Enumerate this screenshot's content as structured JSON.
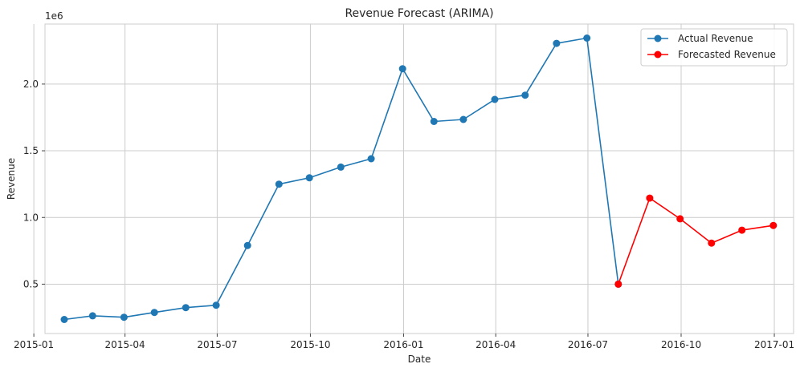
{
  "chart_data": {
    "type": "line",
    "title": "Revenue Forecast (ARIMA)",
    "xlabel": "Date",
    "ylabel": "Revenue",
    "y_offset_label": "1e6",
    "ylim": [
      0.13,
      2.45
    ],
    "xlim": [
      "2015-01-12",
      "2017-01-20"
    ],
    "grid": true,
    "legend_position": "top-right",
    "x_ticks": [
      "2015-01",
      "2015-04",
      "2015-07",
      "2015-10",
      "2016-01",
      "2016-04",
      "2016-07",
      "2016-10",
      "2017-01"
    ],
    "y_ticks": [
      0.5,
      1.0,
      1.5,
      2.0
    ],
    "y_tick_labels": [
      "0.5",
      "1.0",
      "1.5",
      "2.0"
    ],
    "series": [
      {
        "name": "Actual Revenue",
        "color": "#1f77b4",
        "x": [
          "2015-01-31",
          "2015-02-28",
          "2015-03-31",
          "2015-04-30",
          "2015-05-31",
          "2015-06-30",
          "2015-07-31",
          "2015-08-31",
          "2015-09-30",
          "2015-10-31",
          "2015-11-30",
          "2015-12-31",
          "2016-01-31",
          "2016-02-29",
          "2016-03-31",
          "2016-04-30",
          "2016-05-31",
          "2016-06-30",
          "2016-07-31"
        ],
        "values": [
          0.235,
          0.263,
          0.252,
          0.288,
          0.324,
          0.342,
          0.79,
          1.25,
          1.297,
          1.378,
          1.44,
          2.115,
          1.72,
          1.735,
          1.885,
          1.917,
          2.305,
          2.345,
          0.5
        ]
      },
      {
        "name": "Forecasted Revenue",
        "color": "#ff0000",
        "x": [
          "2016-07-31",
          "2016-08-31",
          "2016-09-30",
          "2016-10-31",
          "2016-11-30",
          "2016-12-31"
        ],
        "values": [
          0.5,
          1.145,
          0.99,
          0.808,
          0.905,
          0.94
        ]
      }
    ]
  }
}
